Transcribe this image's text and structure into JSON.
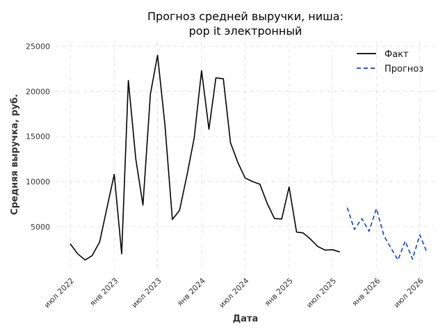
{
  "chart_data": {
    "type": "line",
    "title_line1": "Прогноз средней выручки, ниша:",
    "title_line2": "pop it электронный",
    "xlabel": "Дата",
    "ylabel": "Средняя выручка, руб.",
    "x_ticks": [
      {
        "date": "2022-07-01",
        "label": "июл 2022"
      },
      {
        "date": "2023-01-01",
        "label": "янв 2023"
      },
      {
        "date": "2023-07-01",
        "label": "июл 2023"
      },
      {
        "date": "2024-01-01",
        "label": "янв 2024"
      },
      {
        "date": "2024-07-01",
        "label": "июл 2024"
      },
      {
        "date": "2025-01-01",
        "label": "янв 2025"
      },
      {
        "date": "2025-07-01",
        "label": "июл 2025"
      },
      {
        "date": "2026-01-01",
        "label": "янв 2026"
      },
      {
        "date": "2026-07-01",
        "label": "июл 2026"
      }
    ],
    "y_ticks": [
      5000,
      10000,
      15000,
      20000,
      25000
    ],
    "xlim": [
      "2022-05-01",
      "2026-09-01"
    ],
    "ylim": [
      200,
      25500
    ],
    "grid": true,
    "legend_position": "top-right",
    "series": [
      {
        "name": "Факт",
        "style": "solid",
        "color": "#000000",
        "points": [
          {
            "x": "2022-07-01",
            "y": 3100
          },
          {
            "x": "2022-08-01",
            "y": 2000
          },
          {
            "x": "2022-09-01",
            "y": 1300
          },
          {
            "x": "2022-10-01",
            "y": 1800
          },
          {
            "x": "2022-11-01",
            "y": 3300
          },
          {
            "x": "2022-12-01",
            "y": 7000
          },
          {
            "x": "2023-01-01",
            "y": 10800
          },
          {
            "x": "2023-02-01",
            "y": 2000
          },
          {
            "x": "2023-03-01",
            "y": 21200
          },
          {
            "x": "2023-04-01",
            "y": 12500
          },
          {
            "x": "2023-05-01",
            "y": 7400
          },
          {
            "x": "2023-06-01",
            "y": 19700
          },
          {
            "x": "2023-07-01",
            "y": 24000
          },
          {
            "x": "2023-08-01",
            "y": 16300
          },
          {
            "x": "2023-09-01",
            "y": 5800
          },
          {
            "x": "2023-10-01",
            "y": 6800
          },
          {
            "x": "2023-11-01",
            "y": 10700
          },
          {
            "x": "2023-12-01",
            "y": 14800
          },
          {
            "x": "2024-01-01",
            "y": 22300
          },
          {
            "x": "2024-02-01",
            "y": 15800
          },
          {
            "x": "2024-03-01",
            "y": 21500
          },
          {
            "x": "2024-04-01",
            "y": 21400
          },
          {
            "x": "2024-05-01",
            "y": 14300
          },
          {
            "x": "2024-06-01",
            "y": 12100
          },
          {
            "x": "2024-07-01",
            "y": 10400
          },
          {
            "x": "2024-08-01",
            "y": 10000
          },
          {
            "x": "2024-09-01",
            "y": 9700
          },
          {
            "x": "2024-10-01",
            "y": 7600
          },
          {
            "x": "2024-11-01",
            "y": 5900
          },
          {
            "x": "2024-12-01",
            "y": 5850
          },
          {
            "x": "2025-01-01",
            "y": 9400
          },
          {
            "x": "2025-02-01",
            "y": 4400
          },
          {
            "x": "2025-03-01",
            "y": 4300
          },
          {
            "x": "2025-04-01",
            "y": 3600
          },
          {
            "x": "2025-05-01",
            "y": 2800
          },
          {
            "x": "2025-06-01",
            "y": 2400
          },
          {
            "x": "2025-07-01",
            "y": 2450
          },
          {
            "x": "2025-08-01",
            "y": 2200
          }
        ]
      },
      {
        "name": "Прогноз",
        "style": "dashed",
        "color": "#0a3fd1",
        "points": [
          {
            "x": "2025-09-01",
            "y": 7100
          },
          {
            "x": "2025-10-01",
            "y": 4700
          },
          {
            "x": "2025-11-01",
            "y": 5900
          },
          {
            "x": "2025-12-01",
            "y": 4500
          },
          {
            "x": "2026-01-01",
            "y": 7000
          },
          {
            "x": "2026-02-01",
            "y": 4000
          },
          {
            "x": "2026-03-01",
            "y": 2700
          },
          {
            "x": "2026-04-01",
            "y": 1300
          },
          {
            "x": "2026-05-01",
            "y": 3400
          },
          {
            "x": "2026-06-01",
            "y": 1400
          },
          {
            "x": "2026-07-01",
            "y": 4100
          },
          {
            "x": "2026-08-01",
            "y": 2100
          }
        ]
      }
    ]
  }
}
